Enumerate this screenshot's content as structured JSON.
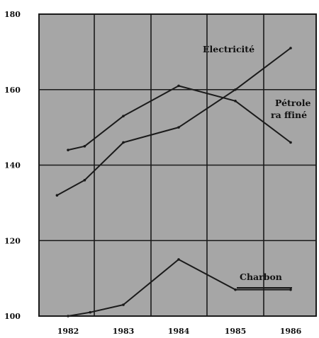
{
  "chart_data": {
    "type": "line",
    "title": "",
    "xlabel": "",
    "ylabel": "",
    "categories": [
      "1982",
      "1983",
      "1984",
      "1985",
      "1986"
    ],
    "ylim": [
      100,
      180
    ],
    "y_ticks": [
      "100",
      "120",
      "140",
      "160",
      "180"
    ],
    "grid": true,
    "colors": {
      "plot_background": "#a6a6a6",
      "grid": "#1a1a1a",
      "lines": "#1a1a1a"
    },
    "series": [
      {
        "name": "Electricité",
        "points": [
          [
            1981.8,
            132
          ],
          [
            1982.3,
            136
          ],
          [
            1983.0,
            146
          ],
          [
            1984.0,
            150
          ],
          [
            1985.0,
            160
          ],
          [
            1986.0,
            171
          ]
        ]
      },
      {
        "name": "Pétrole raffiné",
        "label_lines": [
          "Pétrole",
          "ra ffiné"
        ],
        "points": [
          [
            1982.0,
            144
          ],
          [
            1982.3,
            145
          ],
          [
            1983.0,
            153
          ],
          [
            1984.0,
            161
          ],
          [
            1985.0,
            157
          ],
          [
            1986.0,
            146
          ]
        ]
      },
      {
        "name": "Charbon",
        "points": [
          [
            1982.0,
            100
          ],
          [
            1982.4,
            101
          ],
          [
            1983.0,
            103
          ],
          [
            1984.0,
            115
          ],
          [
            1985.0,
            107
          ],
          [
            1986.0,
            107
          ]
        ]
      }
    ]
  }
}
